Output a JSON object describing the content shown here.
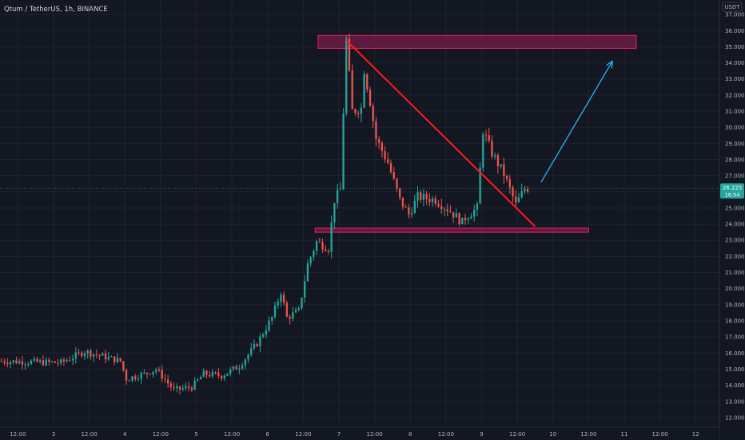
{
  "header": {
    "title": "Qtum / TetherUS, 1h, BINANCE",
    "currency": "USDT"
  },
  "price_tag": {
    "price": "26.225",
    "countdown": "16:54"
  },
  "colors": {
    "background": "#131722",
    "grid": "#1f2330",
    "up": "#26a69a",
    "down": "#ef5350",
    "zone_fill": "#9c1c55",
    "zone_stroke": "#e91e63",
    "trendline": "#ff1a1a",
    "arrow": "#29b6f6",
    "price_line": "#26a69a"
  },
  "chart_data": {
    "type": "candlestick",
    "title": "Qtum / TetherUS, 1h, BINANCE",
    "y_axis": {
      "position": "right",
      "ylim": [
        11.4,
        37.9
      ],
      "ticks": [
        12,
        13,
        14,
        15,
        16,
        17,
        18,
        19,
        20,
        21,
        22,
        23,
        24,
        25,
        26,
        27,
        28,
        29,
        30,
        31,
        32,
        33,
        34,
        35,
        36,
        37
      ],
      "tick_labels": [
        "12.000",
        "13.000",
        "14.000",
        "15.000",
        "16.000",
        "17.000",
        "18.000",
        "19.000",
        "20.000",
        "21.000",
        "22.000",
        "23.000",
        "24.000",
        "25.000",
        "26.000",
        "27.000",
        "28.000",
        "29.000",
        "30.000",
        "31.000",
        "32.000",
        "33.000",
        "34.000",
        "35.000",
        "36.000",
        "37.000"
      ]
    },
    "x_axis": {
      "xlim": [
        0,
        242
      ],
      "ticks": [
        6,
        18,
        30,
        42,
        54,
        66,
        78,
        90,
        102,
        114,
        126,
        138,
        150,
        162,
        174,
        186,
        198,
        210,
        222,
        234
      ],
      "tick_labels": [
        "12:00",
        "3",
        "12:00",
        "4",
        "12:00",
        "5",
        "12:00",
        "6",
        "12:00",
        "7",
        "12:00",
        "8",
        "12:00",
        "9",
        "12:00",
        "10",
        "12:00",
        "11",
        "12:00",
        "12"
      ]
    },
    "grid": true,
    "current_price": 26.225,
    "anchors": [
      [
        0,
        15.5
      ],
      [
        20,
        15.4
      ],
      [
        28,
        16.1
      ],
      [
        40,
        15.5
      ],
      [
        42,
        14.4
      ],
      [
        48,
        14.7
      ],
      [
        52,
        15.0
      ],
      [
        58,
        13.7
      ],
      [
        64,
        13.9
      ],
      [
        68,
        14.7
      ],
      [
        74,
        14.6
      ],
      [
        80,
        15.2
      ],
      [
        86,
        16.6
      ],
      [
        91,
        18.2
      ],
      [
        94,
        19.8
      ],
      [
        96,
        18.2
      ],
      [
        100,
        18.6
      ],
      [
        103,
        21.5
      ],
      [
        106,
        22.9
      ],
      [
        110,
        22.5
      ],
      [
        112,
        25.5
      ],
      [
        114,
        26.1
      ],
      [
        115,
        31.0
      ],
      [
        116,
        35.4
      ],
      [
        118,
        31.0
      ],
      [
        121,
        31.2
      ],
      [
        122,
        33.6
      ],
      [
        124,
        31.6
      ],
      [
        126,
        29.3
      ],
      [
        130,
        27.8
      ],
      [
        134,
        25.5
      ],
      [
        137,
        24.6
      ],
      [
        140,
        25.7
      ],
      [
        146,
        25.5
      ],
      [
        151,
        24.8
      ],
      [
        155,
        24.1
      ],
      [
        156,
        24.4
      ],
      [
        160,
        25.0
      ],
      [
        162,
        29.8
      ],
      [
        165,
        28.4
      ],
      [
        169,
        27.1
      ],
      [
        173,
        25.2
      ],
      [
        176,
        26.2
      ],
      [
        177,
        26.225
      ]
    ],
    "annotations": {
      "resistance_zone": {
        "x0": 107,
        "x1": 214,
        "y0": 34.9,
        "y1": 35.7
      },
      "support_zone": {
        "x0": 106,
        "x1": 198,
        "y0": 23.5,
        "y1": 23.75
      },
      "trendline": {
        "x0": 116.5,
        "y0": 35.4,
        "x1": 180,
        "y1": 23.85
      },
      "arrow": {
        "x0": 182,
        "y0": 26.6,
        "x1": 206,
        "y1": 34.1
      }
    }
  }
}
